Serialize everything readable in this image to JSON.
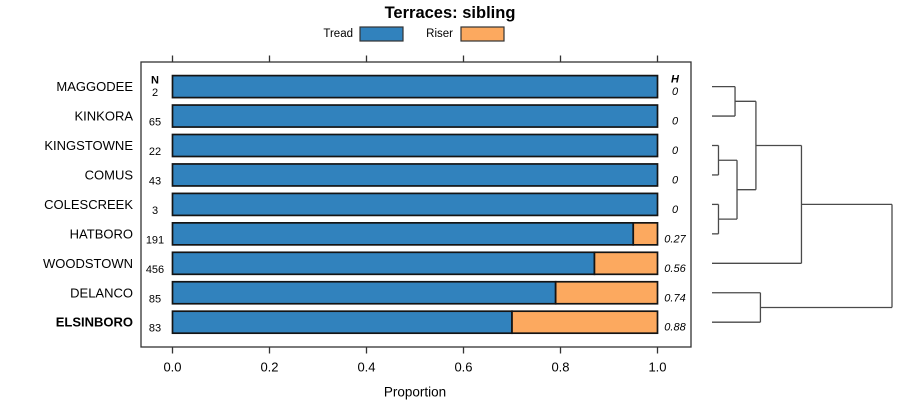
{
  "chart_data": {
    "type": "bar",
    "orientation": "horizontal-stacked",
    "title": "Terraces: sibling",
    "xlabel": "Proportion",
    "x_tick_labels": [
      "0.0",
      "0.2",
      "0.4",
      "0.6",
      "0.8",
      "1.0"
    ],
    "x_ticks": [
      0.0,
      0.2,
      0.4,
      0.6,
      0.8,
      1.0
    ],
    "xlim": [
      0.0,
      1.0
    ],
    "grid": false,
    "legend_position": "top",
    "categories": [
      "MAGGODEE",
      "KINKORA",
      "KINGSTOWNE",
      "COMUS",
      "COLESCREEK",
      "HATBORO",
      "WOODSTOWN",
      "DELANCO",
      "ELSINBORO"
    ],
    "category_emphasis": [
      false,
      false,
      false,
      false,
      false,
      false,
      false,
      false,
      true
    ],
    "n_header": "N",
    "h_header": "H",
    "n_values": [
      "2",
      "65",
      "22",
      "43",
      "3",
      "191",
      "456",
      "85",
      "83"
    ],
    "h_values": [
      "0",
      "0",
      "0",
      "0",
      "0",
      "0.27",
      "0.56",
      "0.74",
      "0.88"
    ],
    "series": [
      {
        "name": "Tread",
        "color": "#3182BD",
        "values": [
          1.0,
          1.0,
          1.0,
          1.0,
          1.0,
          0.95,
          0.87,
          0.79,
          0.7
        ]
      },
      {
        "name": "Riser",
        "color": "#FCA95F",
        "values": [
          0.0,
          0.0,
          0.0,
          0.0,
          0.0,
          0.05,
          0.13,
          0.21,
          0.3
        ]
      }
    ],
    "dendrogram": {
      "leaves": [
        "MAGGODEE",
        "KINKORA",
        "KINGSTOWNE",
        "COMUS",
        "COLESCREEK",
        "HATBORO",
        "WOODSTOWN",
        "DELANCO",
        "ELSINBORO"
      ],
      "merges": [
        {
          "id": "A",
          "a": "L0",
          "b": "L1",
          "h": 0.128
        },
        {
          "id": "B",
          "a": "L2",
          "b": "L3",
          "h": 0.036
        },
        {
          "id": "C",
          "a": "L4",
          "b": "L5",
          "h": 0.036
        },
        {
          "id": "D",
          "a": "B",
          "b": "C",
          "h": 0.139
        },
        {
          "id": "E",
          "a": "A",
          "b": "D",
          "h": 0.244
        },
        {
          "id": "F",
          "a": "E",
          "b": "L6",
          "h": 0.497
        },
        {
          "id": "G",
          "a": "L7",
          "b": "L8",
          "h": 0.269
        },
        {
          "id": "R",
          "a": "F",
          "b": "G",
          "h": 1.0
        }
      ]
    }
  }
}
